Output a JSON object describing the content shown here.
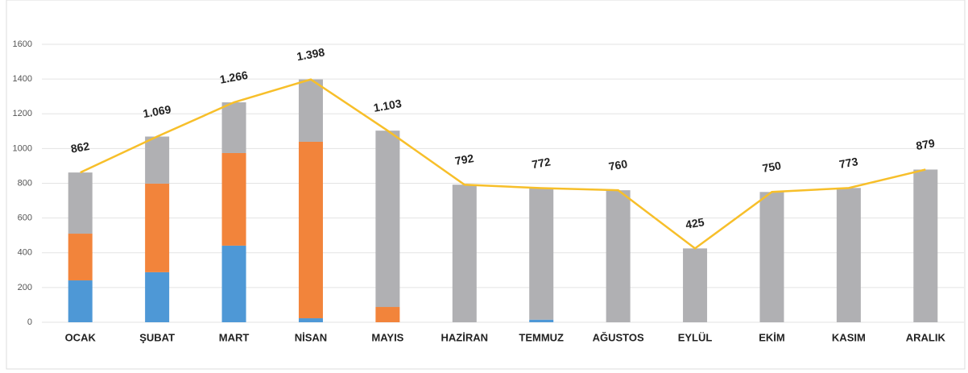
{
  "chart_data": {
    "type": "bar",
    "stacked": true,
    "categories": [
      "OCAK",
      "ŞUBAT",
      "MART",
      "NİSAN",
      "MAYIS",
      "HAZİRAN",
      "TEMMUZ",
      "AĞUSTOS",
      "EYLÜL",
      "EKİM",
      "KASIM",
      "ARALIK"
    ],
    "series": [
      {
        "color": "#4e98d6",
        "values": [
          241,
          288,
          441,
          23,
          0,
          0,
          15,
          0,
          0,
          0,
          0,
          0
        ]
      },
      {
        "color": "#f2843b",
        "values": [
          269,
          510,
          533,
          1016,
          88,
          0,
          0,
          0,
          0,
          0,
          0,
          0
        ]
      },
      {
        "color": "#b0b0b3",
        "values": [
          352,
          271,
          292,
          359,
          1015,
          792,
          757,
          760,
          425,
          750,
          773,
          879
        ]
      },
      {
        "type": "line",
        "color": "#f7bf2a",
        "values": [
          862,
          1069,
          1266,
          1398,
          1103,
          792,
          772,
          760,
          425,
          750,
          773,
          879
        ],
        "value_labels": [
          "862",
          "1.069",
          "1.266",
          "1.398",
          "1.103",
          "792",
          "772",
          "760",
          "425",
          "750",
          "773",
          "879"
        ]
      }
    ],
    "ylim": [
      0,
      1600
    ],
    "yticks": [
      0,
      200,
      400,
      600,
      800,
      1000,
      1200,
      1400,
      1600
    ],
    "grid": true
  }
}
